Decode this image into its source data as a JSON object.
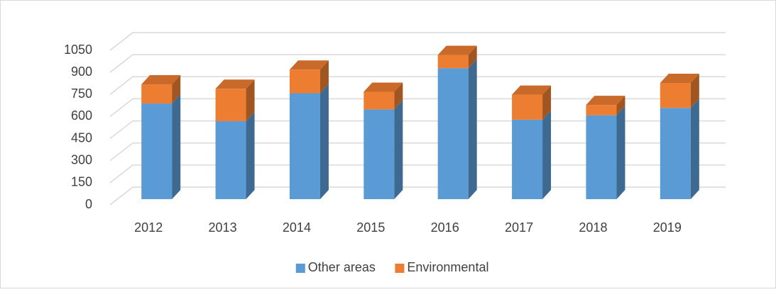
{
  "chart_data": {
    "type": "bar3d_stacked",
    "categories": [
      "2012",
      "2013",
      "2014",
      "2015",
      "2016",
      "2017",
      "2018",
      "2019"
    ],
    "series": [
      {
        "name": "Other areas",
        "color": "#5b9bd5",
        "values": [
          650,
          530,
          720,
          610,
          890,
          540,
          570,
          620
        ]
      },
      {
        "name": "Environmental",
        "color": "#ed7d31",
        "values": [
          130,
          220,
          160,
          120,
          90,
          170,
          70,
          170
        ]
      }
    ],
    "ylim": [
      0,
      1050
    ],
    "yticks": [
      0,
      150,
      300,
      450,
      600,
      750,
      900,
      1050
    ],
    "grid": true,
    "legend": "bottom"
  }
}
